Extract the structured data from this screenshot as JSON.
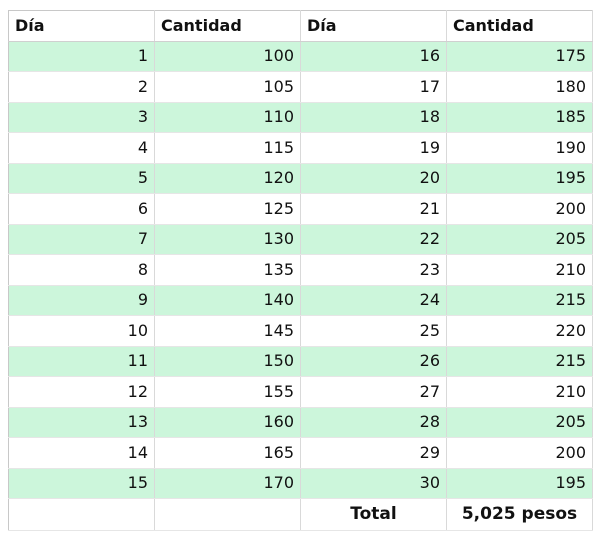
{
  "table": {
    "headers": [
      "Día",
      "Cantidad",
      "Día",
      "Cantidad"
    ],
    "rows": [
      {
        "dia_a": "1",
        "cant_a": "100",
        "dia_b": "16",
        "cant_b": "175"
      },
      {
        "dia_a": "2",
        "cant_a": "105",
        "dia_b": "17",
        "cant_b": "180"
      },
      {
        "dia_a": "3",
        "cant_a": "110",
        "dia_b": "18",
        "cant_b": "185"
      },
      {
        "dia_a": "4",
        "cant_a": "115",
        "dia_b": "19",
        "cant_b": "190"
      },
      {
        "dia_a": "5",
        "cant_a": "120",
        "dia_b": "20",
        "cant_b": "195"
      },
      {
        "dia_a": "6",
        "cant_a": "125",
        "dia_b": "21",
        "cant_b": "200"
      },
      {
        "dia_a": "7",
        "cant_a": "130",
        "dia_b": "22",
        "cant_b": "205"
      },
      {
        "dia_a": "8",
        "cant_a": "135",
        "dia_b": "23",
        "cant_b": "210"
      },
      {
        "dia_a": "9",
        "cant_a": "140",
        "dia_b": "24",
        "cant_b": "215"
      },
      {
        "dia_a": "10",
        "cant_a": "145",
        "dia_b": "25",
        "cant_b": "220"
      },
      {
        "dia_a": "11",
        "cant_a": "150",
        "dia_b": "26",
        "cant_b": "215"
      },
      {
        "dia_a": "12",
        "cant_a": "155",
        "dia_b": "27",
        "cant_b": "210"
      },
      {
        "dia_a": "13",
        "cant_a": "160",
        "dia_b": "28",
        "cant_b": "205"
      },
      {
        "dia_a": "14",
        "cant_a": "165",
        "dia_b": "29",
        "cant_b": "200"
      },
      {
        "dia_a": "15",
        "cant_a": "170",
        "dia_b": "30",
        "cant_b": "195"
      }
    ],
    "total_label": "Total",
    "total_value": "5,025 pesos"
  },
  "colors": {
    "stripe": "#ccf6db",
    "grid": "#d9d9d9"
  }
}
